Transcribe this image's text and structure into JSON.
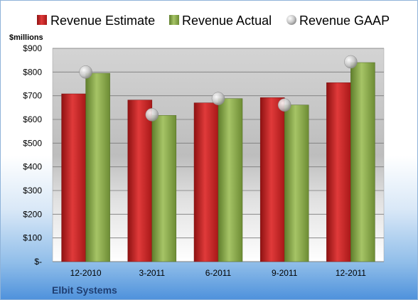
{
  "chart_data": {
    "type": "bar",
    "categories": [
      "12-2010",
      "3-2011",
      "6-2011",
      "9-2011",
      "12-2011"
    ],
    "series": [
      {
        "name": "Revenue Estimate",
        "values": [
          708,
          682,
          670,
          692,
          755
        ],
        "kind": "bar",
        "color": "#d32f2f"
      },
      {
        "name": "Revenue Actual",
        "values": [
          795,
          617,
          688,
          661,
          840
        ],
        "kind": "bar",
        "color": "#8fb04f"
      },
      {
        "name": "Revenue GAAP",
        "values": [
          800,
          620,
          688,
          661,
          843
        ],
        "kind": "marker",
        "color": "#c8c8c8"
      }
    ],
    "ylabel": "$millions",
    "ylim": [
      0,
      900
    ],
    "yticks": [
      0,
      100,
      200,
      300,
      400,
      500,
      600,
      700,
      800,
      900
    ],
    "ytick_labels": [
      "$-",
      "$100",
      "$200",
      "$300",
      "$400",
      "$500",
      "$600",
      "$700",
      "$800",
      "$900"
    ],
    "grid": true,
    "legend_position": "top",
    "company": "Elbit Systems"
  }
}
